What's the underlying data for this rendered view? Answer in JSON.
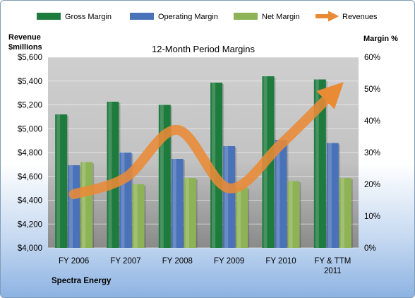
{
  "chart_data": {
    "type": "bar",
    "title": "12-Month Period Margins",
    "categories": [
      "FY 2006",
      "FY 2007",
      "FY 2008",
      "FY 2009",
      "FY 2010",
      "FY & TTM 2011"
    ],
    "series": [
      {
        "name": "Gross Margin",
        "axis": "right",
        "values": [
          42,
          46,
          45,
          52,
          54,
          53
        ],
        "color": "#1e7b3e"
      },
      {
        "name": "Operating Margin",
        "axis": "right",
        "values": [
          26,
          30,
          28,
          32,
          34,
          33
        ],
        "color": "#4a72b8"
      },
      {
        "name": "Net Margin",
        "axis": "right",
        "values": [
          27,
          20,
          22,
          19,
          21,
          22
        ],
        "color": "#8db356"
      },
      {
        "name": "Revenues",
        "type": "line",
        "axis": "left",
        "values": [
          4450,
          4590,
          4990,
          4500,
          4870,
          5300
        ],
        "color": "#e98a35"
      }
    ],
    "y_left": {
      "label_line1": "Revenue",
      "label_line2": "$millions",
      "ylim": [
        4000,
        5600
      ],
      "ticks": [
        "$4,000",
        "$4,200",
        "$4,400",
        "$4,600",
        "$4,800",
        "$5,000",
        "$5,200",
        "$5,400",
        "$5,600"
      ]
    },
    "y_right": {
      "label": "Margin %",
      "ylim": [
        0,
        60
      ],
      "ticks": [
        "0%",
        "10%",
        "20%",
        "30%",
        "40%",
        "50%",
        "60%"
      ]
    },
    "grid": true,
    "legend_position": "top"
  },
  "footer": {
    "source": "Spectra Energy"
  }
}
